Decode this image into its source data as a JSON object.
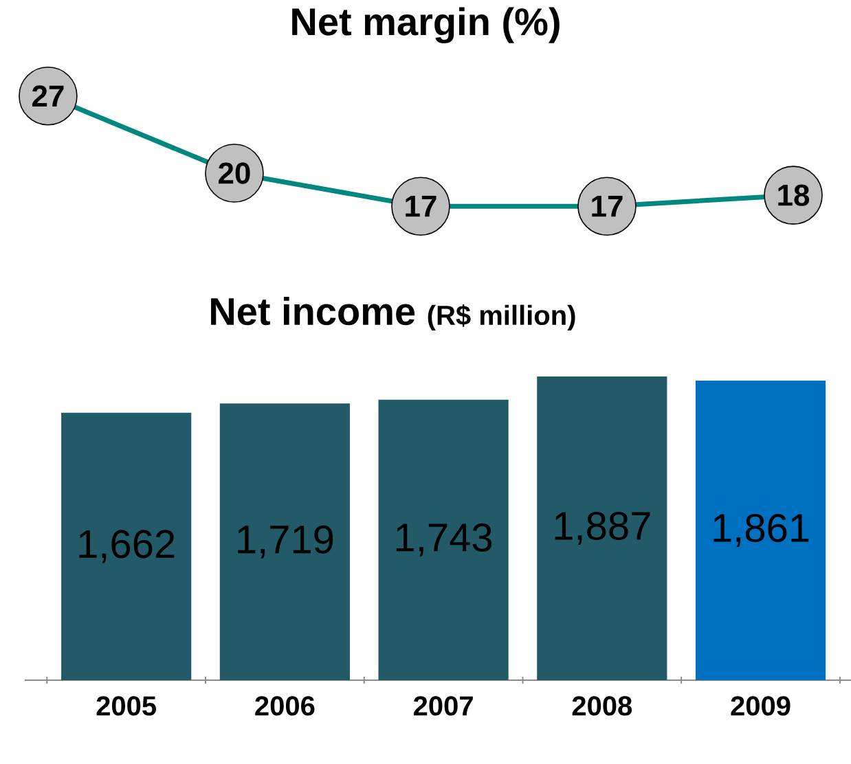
{
  "chart_data": [
    {
      "type": "line",
      "title": "Net margin (%)",
      "categories": [
        null,
        null,
        null,
        null,
        null
      ],
      "values": [
        27,
        20,
        17,
        17,
        18
      ],
      "value_labels": [
        "27",
        "20",
        "17",
        "17",
        "18"
      ],
      "color": "#00877f",
      "marker": "circle"
    },
    {
      "type": "bar",
      "title": "Net income",
      "subtitle": "(R$ million)",
      "categories": [
        "2005",
        "2006",
        "2007",
        "2008",
        "2009"
      ],
      "values": [
        1662,
        1719,
        1743,
        1887,
        1861
      ],
      "value_labels": [
        "1,662",
        "1,719",
        "1,743",
        "1,887",
        "1,861"
      ],
      "colors": [
        "#235a68",
        "#235a68",
        "#235a68",
        "#235a68",
        "#0070c0"
      ]
    }
  ]
}
